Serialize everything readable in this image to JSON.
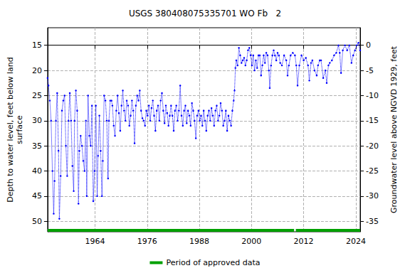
{
  "chart_data": {
    "type": "line",
    "title": "USGS 380408075335701 WO Fb   2",
    "y_label": "Depth to water level, feet below land\nsurface",
    "y2_label": "Groundwater level above NGVD 1929, feet",
    "xlim": [
      1953.1,
      2025.0
    ],
    "xticks": [
      1964,
      1976,
      1988,
      2000,
      2012,
      2024
    ],
    "ylim": [
      11.5,
      52.1
    ],
    "yticks": [
      15,
      20,
      25,
      30,
      35,
      40,
      45,
      50
    ],
    "y_inverted": true,
    "y2lim": [
      -37.1,
      3.5
    ],
    "y2ticks": [
      0,
      -5,
      -10,
      -15,
      -20,
      -25,
      -30,
      -35
    ],
    "grid": true,
    "legend": "bottom",
    "series": [
      {
        "color": "#0000ff",
        "line_style": "dotted",
        "marker": "circle",
        "x": [
          1953.1,
          1953.3,
          1953.6,
          1953.9,
          1954.2,
          1954.5,
          1954.7,
          1955.0,
          1955.3,
          1955.6,
          1955.8,
          1956.1,
          1956.4,
          1956.7,
          1957.0,
          1957.3,
          1957.6,
          1957.9,
          1958.2,
          1958.5,
          1958.8,
          1959.1,
          1959.3,
          1959.6,
          1959.9,
          1960.2,
          1960.4,
          1960.7,
          1961.0,
          1961.3,
          1961.6,
          1961.9,
          1962.1,
          1962.4,
          1962.7,
          1963.0,
          1963.3,
          1963.6,
          1963.9,
          1964.2,
          1964.5,
          1964.7,
          1965.0,
          1965.3,
          1965.6,
          1965.8,
          1966.1,
          1966.4,
          1966.7,
          1967.0,
          1967.2,
          1967.5,
          1967.8,
          1968.0,
          1968.3,
          1968.6,
          1968.9,
          1969.2,
          1969.5,
          1969.8,
          1970.1,
          1970.4,
          1970.7,
          1971.0,
          1971.3,
          1971.6,
          1971.9,
          1972.2,
          1972.5,
          1972.8,
          1973.1,
          1973.4,
          1973.7,
          1974.0,
          1974.3,
          1974.6,
          1974.9,
          1975.2,
          1975.5,
          1975.8,
          1976.1,
          1976.4,
          1976.7,
          1977.0,
          1977.3,
          1977.6,
          1977.9,
          1978.2,
          1978.5,
          1978.8,
          1979.1,
          1979.4,
          1979.7,
          1980.0,
          1980.3,
          1980.6,
          1980.9,
          1981.2,
          1981.5,
          1981.8,
          1982.1,
          1982.4,
          1982.7,
          1983.0,
          1983.3,
          1983.6,
          1983.9,
          1984.2,
          1984.5,
          1984.8,
          1985.1,
          1985.4,
          1985.7,
          1986.0,
          1986.3,
          1986.6,
          1986.9,
          1987.2,
          1987.5,
          1987.8,
          1988.1,
          1988.4,
          1988.7,
          1989.0,
          1989.3,
          1989.6,
          1989.9,
          1990.2,
          1990.5,
          1990.8,
          1991.1,
          1991.4,
          1991.7,
          1992.0,
          1992.3,
          1992.6,
          1992.9,
          1993.2,
          1993.5,
          1993.8,
          1994.1,
          1994.4,
          1994.7,
          1995.0,
          1995.3,
          1995.6,
          1995.9,
          1996.1,
          1996.3,
          1996.5,
          1996.8,
          1997.1,
          1997.4,
          1997.7,
          1998.0,
          1998.3,
          1998.6,
          1998.9,
          1999.2,
          1999.5,
          1999.8,
          2000.1,
          2000.4,
          2000.7,
          2001.0,
          2001.3,
          2001.6,
          2001.9,
          2002.2,
          2002.5,
          2002.8,
          2003.1,
          2003.4,
          2003.7,
          2004.0,
          2004.2,
          2004.5,
          2004.8,
          2005.1,
          2005.4,
          2005.7,
          2006.0,
          2006.3,
          2006.6,
          2007.0,
          2007.5,
          2008.0,
          2008.3,
          2008.6,
          2009.0,
          2009.5,
          2010.0,
          2010.3,
          2010.6,
          2011.0,
          2011.5,
          2012.0,
          2012.5,
          2013.0,
          2013.3,
          2013.7,
          2014.0,
          2014.5,
          2015.0,
          2015.3,
          2015.7,
          2016.0,
          2016.5,
          2017.0,
          2017.3,
          2017.7,
          2018.0,
          2018.5,
          2019.0,
          2019.5,
          2020.0,
          2020.3,
          2020.6,
          2021.0,
          2021.5,
          2022.0,
          2022.5,
          2023.0,
          2023.4,
          2023.8,
          2024.2,
          2024.6,
          2025.0
        ],
        "values": [
          21.5,
          23,
          26,
          30,
          40,
          48.5,
          42,
          30,
          24.5,
          36,
          49.5,
          41,
          28,
          26,
          25,
          35,
          41,
          30,
          24.5,
          30,
          39,
          44,
          30,
          24,
          28,
          46.5,
          36,
          33,
          35,
          38,
          40,
          30,
          45,
          25,
          33,
          35,
          27,
          46,
          40,
          27,
          45,
          37,
          29,
          36,
          45,
          38,
          25,
          26,
          30,
          41.5,
          30,
          26,
          26,
          27,
          31,
          33,
          28,
          25,
          28.5,
          32,
          27,
          24,
          28,
          30,
          26,
          27,
          31,
          29,
          26,
          28,
          34.5,
          27,
          25,
          26,
          24,
          28,
          29.5,
          30,
          31,
          28,
          29,
          27,
          30,
          27.5,
          26,
          29,
          32,
          28,
          27,
          30,
          26,
          24.5,
          28,
          30.5,
          27,
          28.5,
          31,
          29,
          27,
          29,
          32,
          28,
          27,
          30,
          28,
          23,
          29,
          31,
          28,
          27,
          30.5,
          28,
          29,
          31,
          26.5,
          28,
          30,
          33.5,
          29,
          28,
          30,
          29,
          31,
          28,
          30,
          32,
          29,
          28,
          30,
          27.5,
          29,
          31,
          28,
          27,
          30,
          29,
          26.5,
          28,
          31,
          30,
          28,
          32,
          29,
          30,
          31,
          28,
          26,
          24,
          19.5,
          18,
          19,
          15.5,
          17,
          18.5,
          18,
          17.5,
          19,
          18,
          16,
          15.5,
          17,
          19,
          17,
          20,
          18,
          19.5,
          17,
          17,
          21,
          19,
          17,
          18.5,
          16.5,
          17,
          20,
          23.5,
          19,
          17,
          16,
          17,
          18,
          16.5,
          17,
          18.5,
          19,
          17,
          18,
          21,
          19,
          17,
          16.5,
          17,
          19,
          23,
          19,
          17,
          18,
          17.5,
          19,
          22,
          18.5,
          18,
          20,
          21,
          19,
          18,
          18,
          21.5,
          20,
          22.5,
          19,
          18.5,
          18,
          17,
          16.5,
          15,
          16.5,
          20.5,
          16,
          15,
          16,
          15,
          18.5,
          17,
          16,
          15,
          14.5,
          16
        ]
      },
      {
        "name": "Period of approved data",
        "color": "#00a000",
        "line_style": "solid",
        "marker": "none",
        "x": [
          1953.1,
          2009.8,
          2010.0,
          2010.2,
          2025.0
        ],
        "values": [
          51.8,
          51.8,
          null,
          51.8,
          51.8
        ]
      }
    ]
  }
}
